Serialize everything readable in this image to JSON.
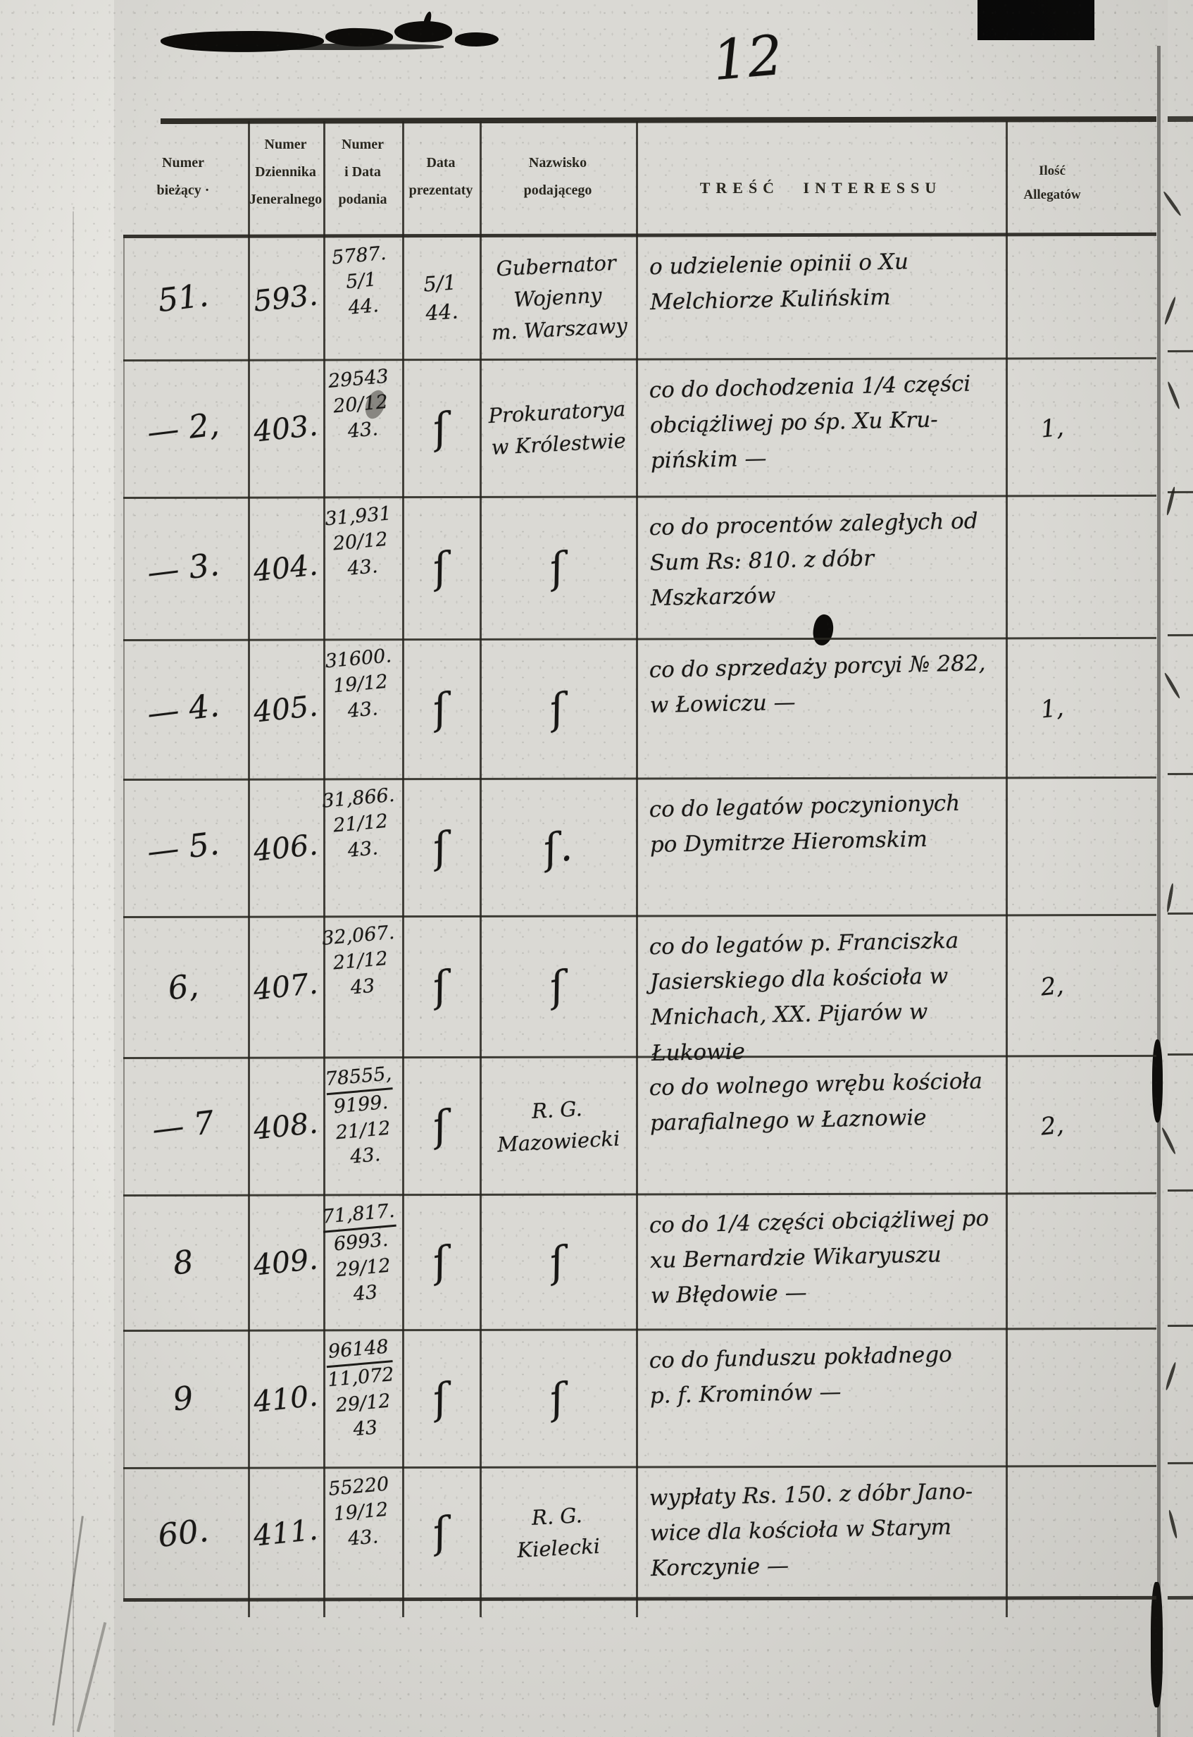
{
  "page": {
    "number": "12"
  },
  "table": {
    "columns": [
      {
        "label": "Numer\nbieżący ·"
      },
      {
        "label": "Numer\nDziennika\nJeneralnego"
      },
      {
        "label": "Numer\ni Data\npodania"
      },
      {
        "label": "Data\nprezentaty"
      },
      {
        "label": "Nazwisko\npodającego"
      },
      {
        "label": "TREŚĆ INTERESSU"
      },
      {
        "label": "Ilość\nAllegatów"
      }
    ],
    "ditto_mark": "ſ",
    "rows": [
      {
        "nb": "51.",
        "dz": "593.",
        "nd": "5787.\n5/1\n44.",
        "dp": "5/1\n44.",
        "naz": "Gubernator\nWojenny\nm. Warszawy",
        "tresc": "o udzielenie opinii o Xu\nMelchiorze Kulińskim",
        "alleg": ""
      },
      {
        "nb": "— 2,",
        "dz": "403.",
        "nd": "29543\n20/12\n43.",
        "dp": "ſ",
        "naz": "Prokuratorya\nw Królestwie",
        "tresc": "co do dochodzenia 1/4 części\nobciążliwej po śp. Xu Kru-\npińskim —",
        "alleg": "1,"
      },
      {
        "nb": "— 3.",
        "dz": "404.",
        "nd": "31,931\n20/12\n43.",
        "dp": "ſ",
        "naz": "ſ",
        "tresc": "co do procentów zaległych od\nSum Rs: 810. z dóbr Mszkarzów",
        "alleg": ""
      },
      {
        "nb": "— 4.",
        "dz": "405.",
        "nd": "31600.\n19/12\n43.",
        "dp": "ſ",
        "naz": "ſ",
        "tresc": "co do sprzedaży porcyi № 282,\nw Łowiczu —",
        "alleg": "1,"
      },
      {
        "nb": "— 5.",
        "dz": "406.",
        "nd": "31,866.\n21/12\n43.",
        "dp": "ſ",
        "naz": "ſ.",
        "tresc": "co do legatów poczynionych\npo Dymitrze Hieromskim",
        "alleg": ""
      },
      {
        "nb": "6,",
        "dz": "407.",
        "nd": "32,067.\n21/12\n43",
        "dp": "ſ",
        "naz": "ſ",
        "tresc": "co do legatów p. Franciszka\nJasierskiego dla kościoła w\nMnichach, XX. Pijarów w Łukowie",
        "alleg": "2,"
      },
      {
        "nb": "— 7",
        "dz": "408.",
        "nd_top": "78555,",
        "nd_rest": "9199.\n21/12\n43.",
        "dp": "ſ",
        "naz": "R. G.\nMazowiecki",
        "tresc": "co do wolnego wrębu kościoła\nparafialnego w Łaznowie",
        "alleg": "2,"
      },
      {
        "nb": "8",
        "dz": "409.",
        "nd_top": "71,817.",
        "nd_rest": "6993.\n29/12\n43",
        "dp": "ſ",
        "naz": "ſ",
        "tresc": "co do 1/4 części obciążliwej po\nxu Bernardzie Wikaryuszu\nw Błędowie —",
        "alleg": ""
      },
      {
        "nb": "9",
        "dz": "410.",
        "nd_top": "96148",
        "nd_rest": "11,072\n29/12\n43",
        "dp": "ſ",
        "naz": "ſ",
        "tresc": "co do funduszu pokładnego\np. f. Krominów —",
        "alleg": ""
      },
      {
        "nb": "60.",
        "dz": "411.",
        "nd": "55220\n19/12\n43.",
        "dp": "ſ",
        "naz": "R. G.\nKielecki",
        "tresc": "wypłaty Rs. 150. z dóbr Jano-\nwice dla kościoła w Starym\nKorczynie —",
        "alleg": ""
      }
    ]
  }
}
